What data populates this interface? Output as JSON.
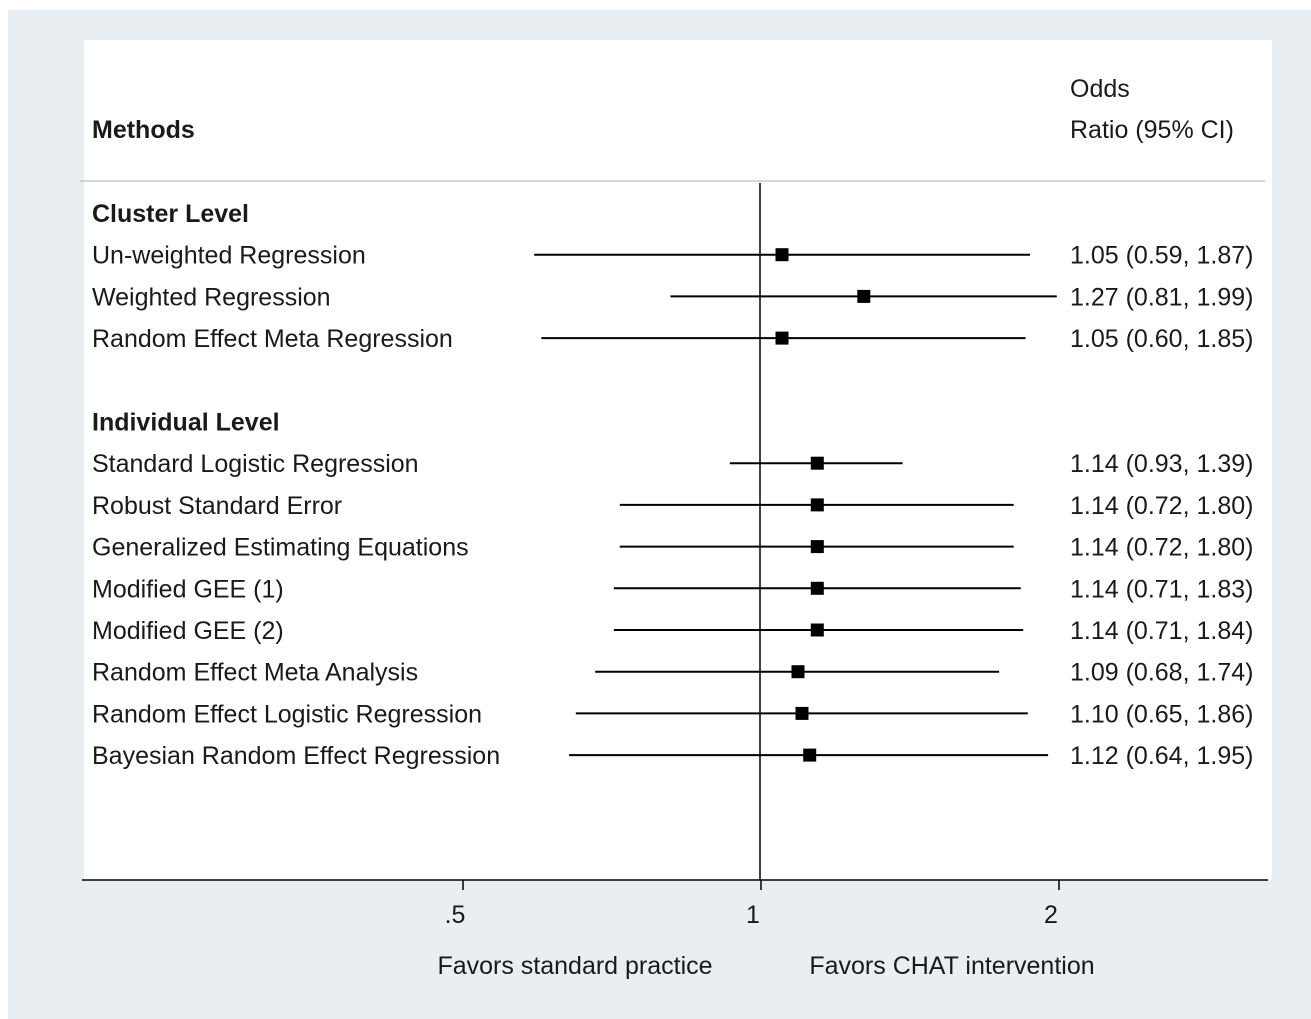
{
  "chart_data": {
    "type": "forest",
    "x_scale": "log",
    "reference_line": 1,
    "x_ticks": [
      {
        "value": 0.5,
        "label": ".5"
      },
      {
        "value": 1,
        "label": "1"
      },
      {
        "value": 2,
        "label": "2"
      }
    ],
    "header": {
      "methods": "Methods",
      "estimate_line1": "Odds",
      "estimate_line2": "Ratio (95% CI)"
    },
    "groups": [
      {
        "name": "Cluster Level",
        "rows": [
          {
            "label": "Un-weighted Regression",
            "or": 1.05,
            "lo": 0.59,
            "hi": 1.87,
            "text": "1.05 (0.59, 1.87)"
          },
          {
            "label": "Weighted Regression",
            "or": 1.27,
            "lo": 0.81,
            "hi": 1.99,
            "text": "1.27 (0.81, 1.99)"
          },
          {
            "label": "Random Effect Meta Regression",
            "or": 1.05,
            "lo": 0.6,
            "hi": 1.85,
            "text": "1.05 (0.60, 1.85)"
          }
        ]
      },
      {
        "name": "Individual Level",
        "rows": [
          {
            "label": "Standard Logistic Regression",
            "or": 1.14,
            "lo": 0.93,
            "hi": 1.39,
            "text": "1.14 (0.93, 1.39)"
          },
          {
            "label": "Robust Standard Error",
            "or": 1.14,
            "lo": 0.72,
            "hi": 1.8,
            "text": "1.14 (0.72, 1.80)"
          },
          {
            "label": "Generalized Estimating Equations",
            "or": 1.14,
            "lo": 0.72,
            "hi": 1.8,
            "text": "1.14 (0.72, 1.80)"
          },
          {
            "label": "Modified GEE (1)",
            "or": 1.14,
            "lo": 0.71,
            "hi": 1.83,
            "text": "1.14 (0.71, 1.83)"
          },
          {
            "label": "Modified GEE (2)",
            "or": 1.14,
            "lo": 0.71,
            "hi": 1.84,
            "text": "1.14 (0.71, 1.84)"
          },
          {
            "label": "Random Effect Meta Analysis",
            "or": 1.09,
            "lo": 0.68,
            "hi": 1.74,
            "text": "1.09 (0.68, 1.74)"
          },
          {
            "label": "Random Effect Logistic Regression",
            "or": 1.1,
            "lo": 0.65,
            "hi": 1.86,
            "text": "1.10 (0.65, 1.86)"
          },
          {
            "label": "Bayesian Random Effect Regression",
            "or": 1.12,
            "lo": 0.64,
            "hi": 1.95,
            "text": "1.12 (0.64, 1.95)"
          }
        ]
      }
    ],
    "favors_left": "Favors standard practice",
    "favors_right": "Favors CHAT intervention",
    "colors": {
      "background": "#e8eef2",
      "plot": "#ffffff",
      "ink": "#000000"
    }
  }
}
